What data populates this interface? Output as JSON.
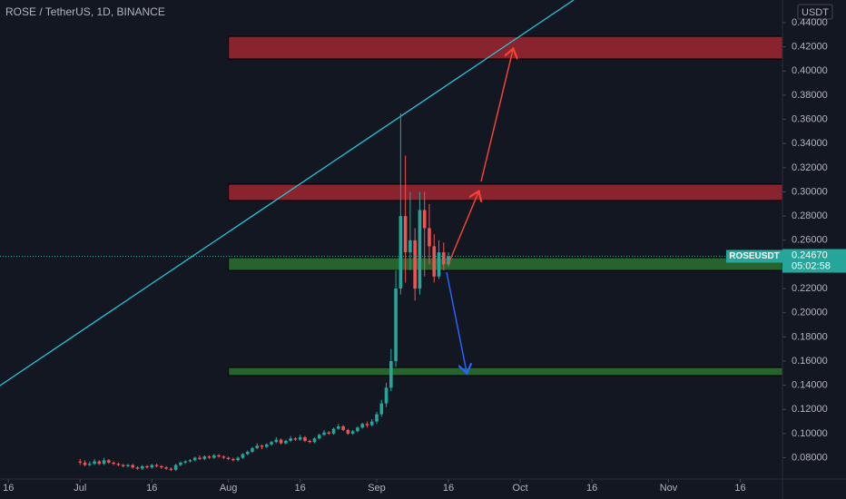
{
  "chart_data": {
    "type": "candlestick",
    "title": "ROSE / TetherUS, 1D, BINANCE",
    "currency": "USDT",
    "symbol": "ROSEUSDT",
    "countdown": "05:02:58",
    "last_price": {
      "value": 0.2467,
      "label": "0.24670"
    },
    "up_color": "#26a69a",
    "down_color": "#ef5350",
    "ylim": [
      0.0684,
      0.4588
    ],
    "yticks": [
      {
        "value": 0.08,
        "label": "0.08000"
      },
      {
        "value": 0.1,
        "label": "0.10000"
      },
      {
        "value": 0.12,
        "label": "0.12000"
      },
      {
        "value": 0.14,
        "label": "0.14000"
      },
      {
        "value": 0.16,
        "label": "0.16000"
      },
      {
        "value": 0.18,
        "label": "0.18000"
      },
      {
        "value": 0.2,
        "label": "0.20000"
      },
      {
        "value": 0.22,
        "label": "0.22000"
      },
      {
        "value": 0.26,
        "label": "0.26000"
      },
      {
        "value": 0.28,
        "label": "0.28000"
      },
      {
        "value": 0.3,
        "label": "0.30000"
      },
      {
        "value": 0.32,
        "label": "0.32000"
      },
      {
        "value": 0.34,
        "label": "0.34000"
      },
      {
        "value": 0.36,
        "label": "0.36000"
      },
      {
        "value": 0.38,
        "label": "0.38000"
      },
      {
        "value": 0.4,
        "label": "0.40000"
      },
      {
        "value": 0.42,
        "label": "0.42000"
      },
      {
        "value": 0.44,
        "label": "0.44000"
      }
    ],
    "xticks": [
      {
        "value": "Jun 16",
        "label": "16"
      },
      {
        "value": "Jul 1",
        "label": "Jul"
      },
      {
        "value": "Jul 16",
        "label": "16"
      },
      {
        "value": "Aug 1",
        "label": "Aug"
      },
      {
        "value": "Aug 16",
        "label": "16"
      },
      {
        "value": "Sep 1",
        "label": "Sep"
      },
      {
        "value": "Sep 16",
        "label": "16"
      },
      {
        "value": "Oct 1",
        "label": "Oct"
      },
      {
        "value": "Oct 16",
        "label": "16"
      },
      {
        "value": "Nov 1",
        "label": "Nov"
      },
      {
        "value": "Nov 16",
        "label": "16"
      }
    ],
    "zones": [
      {
        "low": 0.41,
        "high": 0.4287,
        "color": "#b22833"
      },
      {
        "low": 0.2929,
        "high": 0.3064,
        "color": "#b22833"
      },
      {
        "low": 0.235,
        "high": 0.2456,
        "color": "#2e7d32"
      },
      {
        "low": 0.148,
        "high": 0.1547,
        "color": "#2e7d32"
      }
    ],
    "x": [
      "Jul 1",
      "Jul 2",
      "Jul 3",
      "Jul 4",
      "Jul 5",
      "Jul 6",
      "Jul 7",
      "Jul 8",
      "Jul 9",
      "Jul 10",
      "Jul 11",
      "Jul 12",
      "Jul 13",
      "Jul 14",
      "Jul 15",
      "Jul 16",
      "Jul 17",
      "Jul 18",
      "Jul 19",
      "Jul 20",
      "Jul 21",
      "Jul 22",
      "Jul 23",
      "Jul 24",
      "Jul 25",
      "Jul 26",
      "Jul 27",
      "Jul 28",
      "Jul 29",
      "Jul 30",
      "Jul 31",
      "Aug 1",
      "Aug 2",
      "Aug 3",
      "Aug 4",
      "Aug 5",
      "Aug 6",
      "Aug 7",
      "Aug 8",
      "Aug 9",
      "Aug 10",
      "Aug 11",
      "Aug 12",
      "Aug 13",
      "Aug 14",
      "Aug 15",
      "Aug 16",
      "Aug 17",
      "Aug 18",
      "Aug 19",
      "Aug 20",
      "Aug 21",
      "Aug 22",
      "Aug 23",
      "Aug 24",
      "Aug 25",
      "Aug 26",
      "Aug 27",
      "Aug 28",
      "Aug 29",
      "Aug 30",
      "Aug 31",
      "Sep 1",
      "Sep 2",
      "Sep 3",
      "Sep 4",
      "Sep 5",
      "Sep 6",
      "Sep 7",
      "Sep 8",
      "Sep 9",
      "Sep 10",
      "Sep 11",
      "Sep 12",
      "Sep 13",
      "Sep 14",
      "Sep 15",
      "Sep 16"
    ],
    "candles": [
      [
        0.077,
        0.079,
        0.074,
        0.076
      ],
      [
        0.076,
        0.078,
        0.073,
        0.074
      ],
      [
        0.074,
        0.077,
        0.073,
        0.075
      ],
      [
        0.075,
        0.079,
        0.074,
        0.077
      ],
      [
        0.077,
        0.078,
        0.074,
        0.075
      ],
      [
        0.075,
        0.08,
        0.074,
        0.078
      ],
      [
        0.078,
        0.079,
        0.075,
        0.076
      ],
      [
        0.076,
        0.077,
        0.074,
        0.075
      ],
      [
        0.075,
        0.076,
        0.073,
        0.074
      ],
      [
        0.074,
        0.075,
        0.072,
        0.073
      ],
      [
        0.073,
        0.075,
        0.072,
        0.074
      ],
      [
        0.074,
        0.075,
        0.071,
        0.072
      ],
      [
        0.072,
        0.073,
        0.07,
        0.071
      ],
      [
        0.071,
        0.074,
        0.07,
        0.073
      ],
      [
        0.073,
        0.074,
        0.071,
        0.072
      ],
      [
        0.072,
        0.075,
        0.071,
        0.074
      ],
      [
        0.074,
        0.075,
        0.072,
        0.073
      ],
      [
        0.073,
        0.074,
        0.071,
        0.072
      ],
      [
        0.072,
        0.073,
        0.07,
        0.071
      ],
      [
        0.071,
        0.072,
        0.069,
        0.07
      ],
      [
        0.07,
        0.075,
        0.069,
        0.074
      ],
      [
        0.074,
        0.077,
        0.073,
        0.076
      ],
      [
        0.076,
        0.078,
        0.075,
        0.077
      ],
      [
        0.077,
        0.079,
        0.076,
        0.078
      ],
      [
        0.078,
        0.081,
        0.077,
        0.08
      ],
      [
        0.08,
        0.082,
        0.078,
        0.079
      ],
      [
        0.079,
        0.082,
        0.078,
        0.081
      ],
      [
        0.081,
        0.082,
        0.079,
        0.08
      ],
      [
        0.08,
        0.083,
        0.079,
        0.082
      ],
      [
        0.082,
        0.083,
        0.08,
        0.081
      ],
      [
        0.081,
        0.082,
        0.079,
        0.08
      ],
      [
        0.08,
        0.081,
        0.078,
        0.079
      ],
      [
        0.079,
        0.08,
        0.077,
        0.078
      ],
      [
        0.078,
        0.081,
        0.077,
        0.08
      ],
      [
        0.08,
        0.084,
        0.079,
        0.083
      ],
      [
        0.083,
        0.086,
        0.082,
        0.085
      ],
      [
        0.085,
        0.089,
        0.084,
        0.088
      ],
      [
        0.088,
        0.092,
        0.087,
        0.09
      ],
      [
        0.09,
        0.091,
        0.087,
        0.089
      ],
      [
        0.089,
        0.092,
        0.088,
        0.091
      ],
      [
        0.091,
        0.094,
        0.09,
        0.093
      ],
      [
        0.093,
        0.097,
        0.092,
        0.095
      ],
      [
        0.095,
        0.096,
        0.091,
        0.092
      ],
      [
        0.092,
        0.095,
        0.091,
        0.094
      ],
      [
        0.094,
        0.098,
        0.093,
        0.096
      ],
      [
        0.096,
        0.097,
        0.094,
        0.095
      ],
      [
        0.095,
        0.099,
        0.094,
        0.097
      ],
      [
        0.097,
        0.098,
        0.093,
        0.094
      ],
      [
        0.094,
        0.095,
        0.092,
        0.093
      ],
      [
        0.093,
        0.097,
        0.092,
        0.096
      ],
      [
        0.096,
        0.1,
        0.095,
        0.099
      ],
      [
        0.099,
        0.103,
        0.098,
        0.101
      ],
      [
        0.101,
        0.102,
        0.099,
        0.1
      ],
      [
        0.1,
        0.105,
        0.099,
        0.104
      ],
      [
        0.104,
        0.108,
        0.103,
        0.106
      ],
      [
        0.106,
        0.107,
        0.102,
        0.103
      ],
      [
        0.103,
        0.104,
        0.099,
        0.1
      ],
      [
        0.1,
        0.103,
        0.099,
        0.102
      ],
      [
        0.102,
        0.106,
        0.101,
        0.105
      ],
      [
        0.105,
        0.109,
        0.104,
        0.108
      ],
      [
        0.108,
        0.11,
        0.105,
        0.107
      ],
      [
        0.107,
        0.112,
        0.106,
        0.11
      ],
      [
        0.11,
        0.118,
        0.108,
        0.116
      ],
      [
        0.116,
        0.128,
        0.114,
        0.125
      ],
      [
        0.125,
        0.142,
        0.122,
        0.138
      ],
      [
        0.138,
        0.17,
        0.135,
        0.16
      ],
      [
        0.16,
        0.235,
        0.155,
        0.22
      ],
      [
        0.22,
        0.365,
        0.215,
        0.28
      ],
      [
        0.28,
        0.33,
        0.225,
        0.25
      ],
      [
        0.25,
        0.3,
        0.235,
        0.26
      ],
      [
        0.26,
        0.27,
        0.21,
        0.22
      ],
      [
        0.22,
        0.3,
        0.215,
        0.285
      ],
      [
        0.285,
        0.3,
        0.23,
        0.27
      ],
      [
        0.27,
        0.29,
        0.24,
        0.255
      ],
      [
        0.255,
        0.265,
        0.225,
        0.23
      ],
      [
        0.23,
        0.26,
        0.228,
        0.25
      ],
      [
        0.25,
        0.258,
        0.235,
        0.24
      ],
      [
        0.24,
        0.25,
        0.238,
        0.2467
      ]
    ]
  }
}
